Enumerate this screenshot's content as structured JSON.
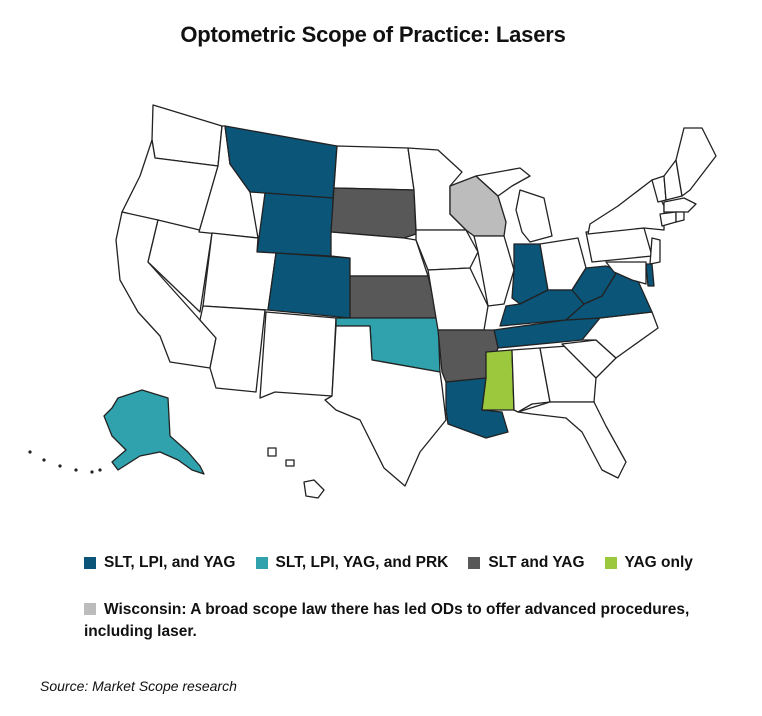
{
  "title": "Optometric Scope of Practice: Lasers",
  "colors": {
    "slt_lpi_yag": "#0a5578",
    "slt_lpi_yag_prk": "#30a2ad",
    "slt_yag": "#585858",
    "yag_only": "#9bc83c",
    "wisconsin": "#bcbcbc",
    "other": "#ffffff"
  },
  "legend": [
    {
      "label": "SLT, LPI, and YAG",
      "color": "#0a5578",
      "states": [
        "Montana",
        "Wyoming",
        "Colorado",
        "Louisiana",
        "Indiana",
        "Kentucky",
        "Tennessee",
        "West Virginia",
        "Virginia",
        "Delaware"
      ]
    },
    {
      "label": "SLT, LPI, YAG, and PRK",
      "color": "#30a2ad",
      "states": [
        "Oklahoma",
        "Alaska"
      ]
    },
    {
      "label": "SLT and YAG",
      "color": "#585858",
      "states": [
        "South Dakota",
        "Kansas",
        "Arkansas"
      ]
    },
    {
      "label": "YAG only",
      "color": "#9bc83c",
      "states": [
        "Mississippi"
      ]
    }
  ],
  "note": {
    "label": "Wisconsin: A broad scope law there has led ODs to offer advanced procedures, including laser.",
    "color": "#bcbcbc",
    "states": [
      "Wisconsin"
    ]
  },
  "source": "Source: Market Scope research"
}
